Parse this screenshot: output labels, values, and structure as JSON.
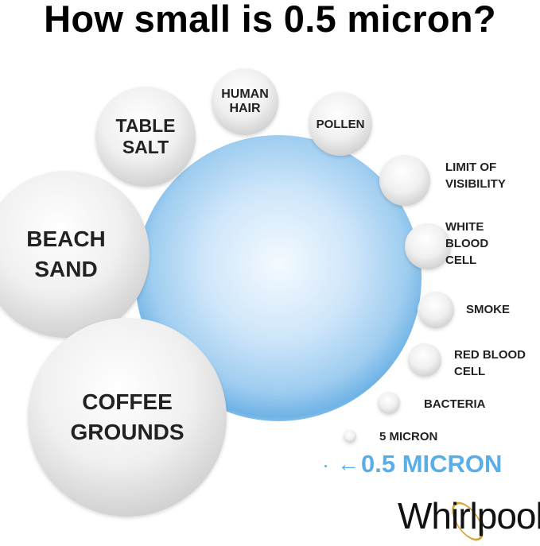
{
  "title": "How small is 0.5 micron?",
  "circles": {
    "human_hair": "HUMAN\nHAIR",
    "table_salt": "TABLE\nSALT",
    "pollen": "POLLEN",
    "beach_sand": "BEACH\nSAND",
    "coffee_grounds": "COFFEE\nGROUNDS"
  },
  "side_labels": {
    "limit": "LIMIT OF\nVISIBILITY",
    "white": "WHITE\nBLOOD\nCELL",
    "smoke": "SMOKE",
    "red": "RED BLOOD\nCELL",
    "bacteria": "BACTERIA",
    "five": "5 MICRON"
  },
  "highlight": {
    "arrow": "←",
    "text": "0.5 MICRON",
    "color": "#5aaee8"
  },
  "logo": "Whirlpool"
}
